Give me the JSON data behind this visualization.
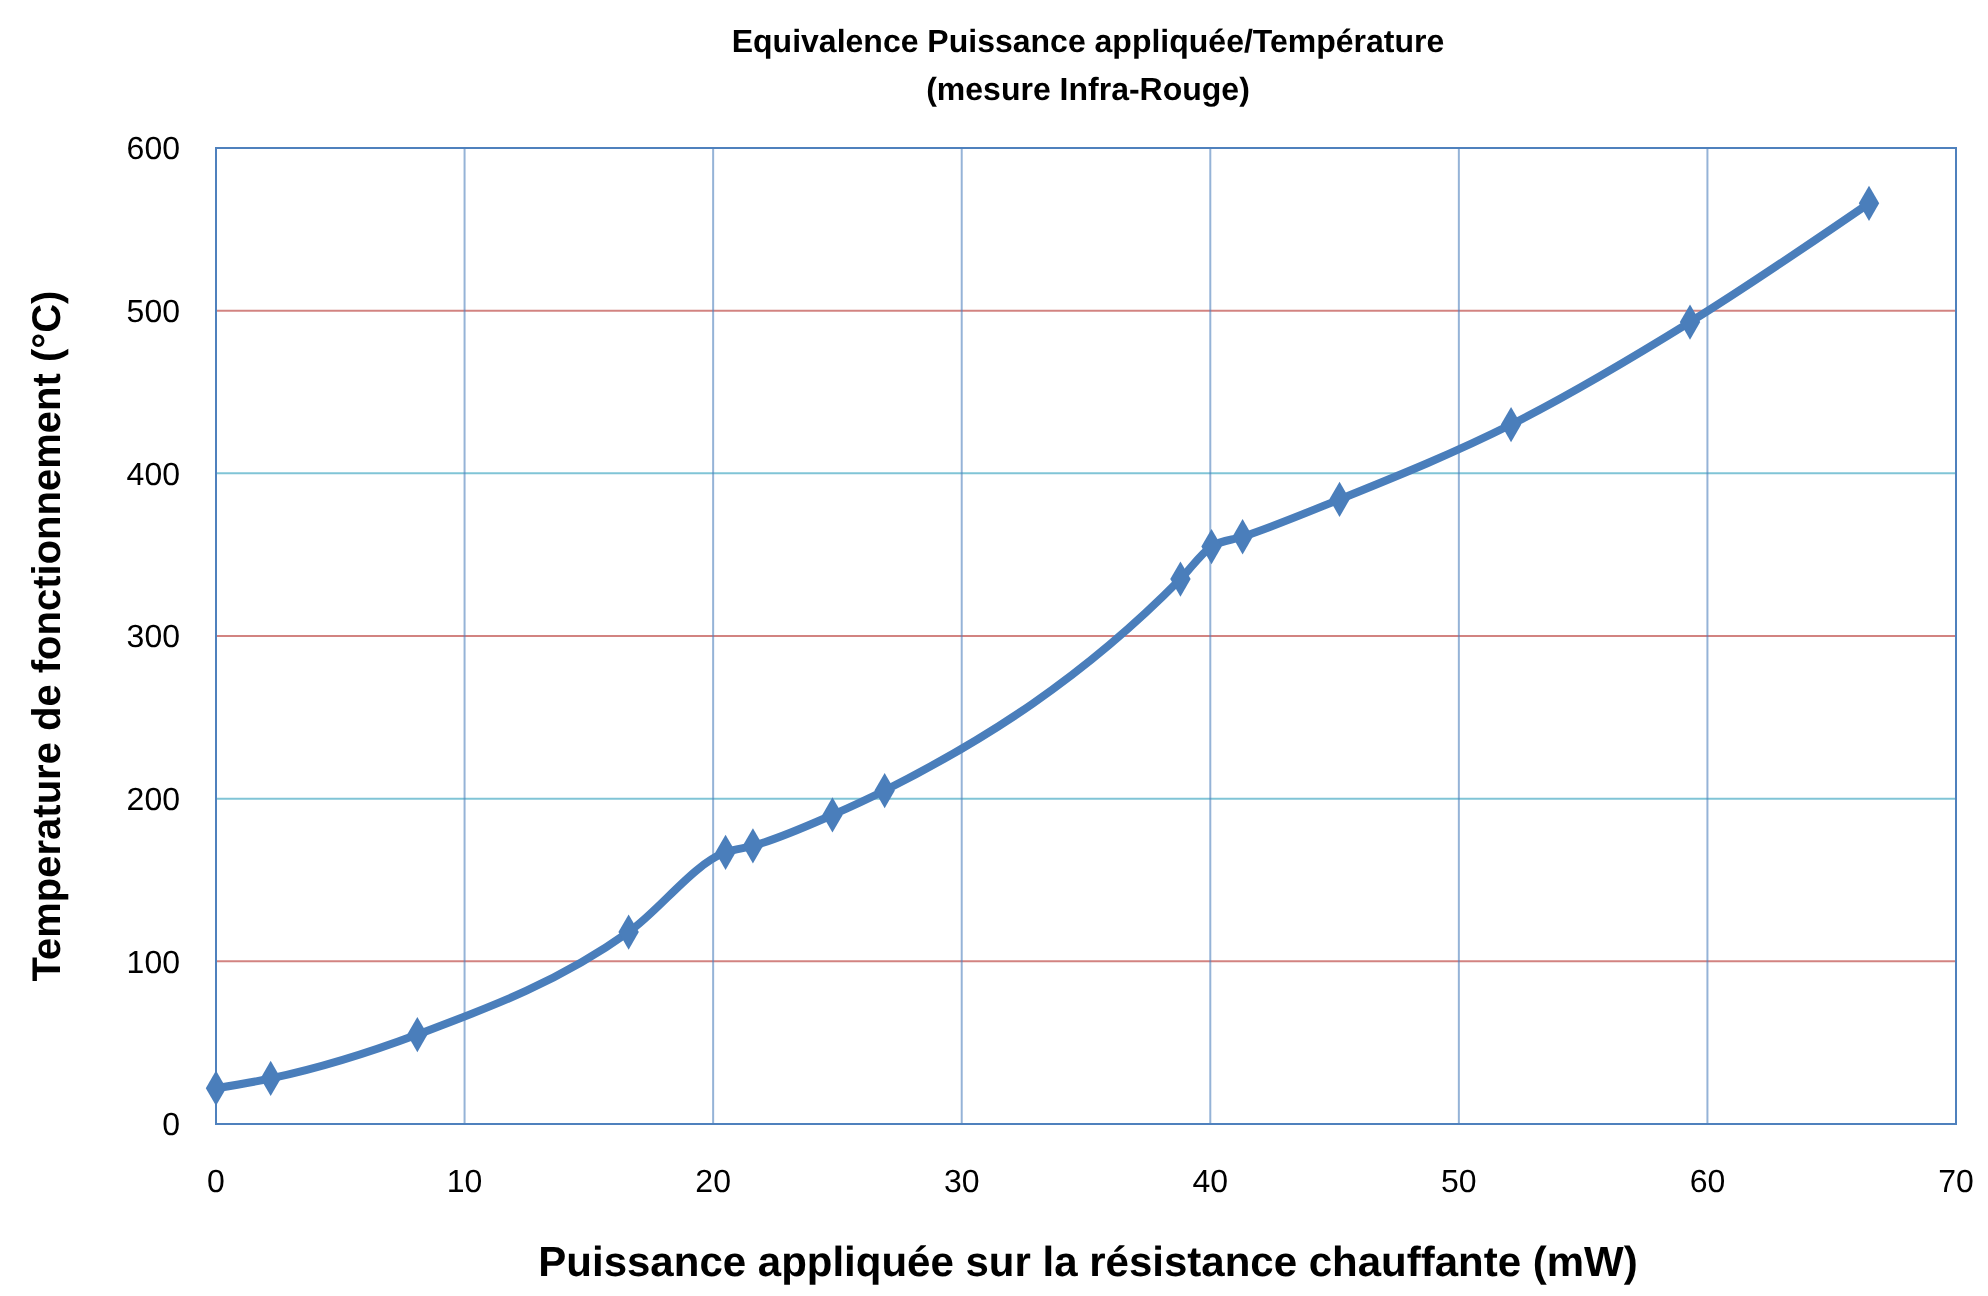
{
  "chart_data": {
    "type": "line",
    "title": "Equivalence Puissance appliquée/Température",
    "subtitle": "(mesure Infra-Rouge)",
    "xlabel": "Puissance appliquée sur la résistance chauffante (mW)",
    "ylabel": "Temperature de fonctionnement (°C)",
    "x": [
      0,
      2.2,
      8.1,
      16.6,
      20.5,
      21.6,
      24.8,
      26.9,
      38.8,
      40.05,
      41.3,
      45.2,
      52.1,
      59.3,
      66.5
    ],
    "series": [
      {
        "color": "#4a7ebb",
        "values": [
          22,
          28,
          55,
          118,
          167,
          171,
          190,
          205,
          335,
          355,
          361,
          384,
          430,
          493,
          566
        ]
      }
    ],
    "xlim": [
      0,
      70
    ],
    "xticks": [
      0,
      10,
      20,
      30,
      40,
      50,
      60,
      70
    ],
    "ylim": [
      0,
      600
    ],
    "yticks": [
      0,
      100,
      200,
      300,
      400,
      500,
      600
    ],
    "grid": true,
    "marker": "diamond",
    "line_style": "solid"
  }
}
